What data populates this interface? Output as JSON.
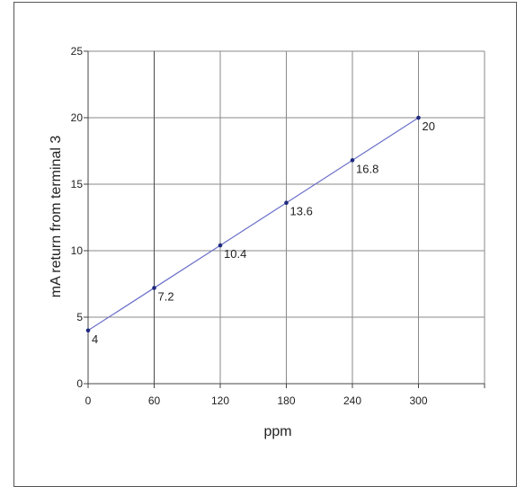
{
  "chart_data": {
    "type": "line",
    "title": "",
    "xlabel": "ppm",
    "ylabel": "mA return from terminal 3",
    "xlim": [
      0,
      360
    ],
    "ylim": [
      0,
      25
    ],
    "x_ticks": [
      0,
      60,
      120,
      180,
      240,
      300
    ],
    "y_ticks": [
      0,
      5,
      10,
      15,
      20,
      25
    ],
    "grid": true,
    "legend": "none",
    "series": [
      {
        "x": [
          0,
          60,
          120,
          180,
          240,
          300
        ],
        "values": [
          4,
          7.2,
          10.4,
          13.6,
          16.8,
          20
        ],
        "labels": [
          "4",
          "7.2",
          "10.4",
          "13.6",
          "16.8",
          "20"
        ],
        "color": "#6a6fc8",
        "marker_color": "#1f2a80"
      }
    ]
  }
}
